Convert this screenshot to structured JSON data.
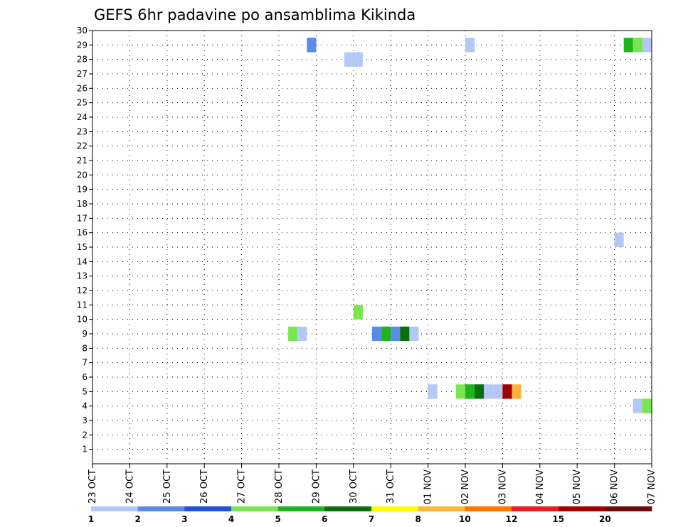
{
  "chart_data": {
    "type": "heatmap",
    "title": "GEFS 6hr padavine po ansamblima Kikinda",
    "xlabel": "",
    "ylabel": "",
    "x_tick_labels": [
      "23 OCT",
      "24 OCT",
      "25 OCT",
      "26 OCT",
      "27 OCT",
      "28 OCT",
      "29 OCT",
      "30 OCT",
      "31 OCT",
      "01 NOV",
      "02 NOV",
      "03 NOV",
      "04 NOV",
      "05 NOV",
      "06 NOV",
      "07 NOV"
    ],
    "x_range_days": [
      0,
      15
    ],
    "y_range": [
      0,
      30
    ],
    "y_ticks": [
      1,
      2,
      3,
      4,
      5,
      6,
      7,
      8,
      9,
      10,
      11,
      12,
      13,
      14,
      15,
      16,
      17,
      18,
      19,
      20,
      21,
      22,
      23,
      24,
      25,
      26,
      27,
      28,
      29,
      30
    ],
    "grid": true,
    "time_step_hours": 6,
    "legend": {
      "placement": "bottom",
      "colors": [
        "#b4c8f5",
        "#5a8ce6",
        "#1e50dc",
        "#78e650",
        "#1eb41e",
        "#0a6e0a",
        "#ffff00",
        "#ffb43c",
        "#ff7800",
        "#e61e1e",
        "#a00000",
        "#6e0a0a"
      ],
      "labels": [
        "1",
        "2",
        "3",
        "4",
        "5",
        "6",
        "7",
        "8",
        "10",
        "12",
        "15",
        "20"
      ]
    },
    "cells": [
      {
        "member": 29,
        "day": 5.875,
        "value": 2
      },
      {
        "member": 28,
        "day": 6.875,
        "value": 1
      },
      {
        "member": 28,
        "day": 7.125,
        "value": 1
      },
      {
        "member": 29,
        "day": 10.125,
        "value": 1
      },
      {
        "member": 29,
        "day": 14.375,
        "value": 5
      },
      {
        "member": 29,
        "day": 14.625,
        "value": 4
      },
      {
        "member": 29,
        "day": 14.875,
        "value": 1
      },
      {
        "member": 15.5,
        "day": 14.125,
        "value": 1
      },
      {
        "member": 10.5,
        "day": 7.125,
        "value": 4
      },
      {
        "member": 9,
        "day": 5.375,
        "value": 4
      },
      {
        "member": 9,
        "day": 5.625,
        "value": 1
      },
      {
        "member": 9,
        "day": 7.625,
        "value": 2
      },
      {
        "member": 9,
        "day": 7.875,
        "value": 5
      },
      {
        "member": 9,
        "day": 8.125,
        "value": 2
      },
      {
        "member": 9,
        "day": 8.375,
        "value": 6
      },
      {
        "member": 9,
        "day": 8.625,
        "value": 1
      },
      {
        "member": 5,
        "day": 9.125,
        "value": 1
      },
      {
        "member": 5,
        "day": 9.875,
        "value": 4
      },
      {
        "member": 5,
        "day": 10.125,
        "value": 5
      },
      {
        "member": 5,
        "day": 10.375,
        "value": 6
      },
      {
        "member": 5,
        "day": 10.625,
        "value": 1
      },
      {
        "member": 5,
        "day": 10.875,
        "value": 1
      },
      {
        "member": 5,
        "day": 11.125,
        "value": 15
      },
      {
        "member": 5,
        "day": 11.375,
        "value": 8
      },
      {
        "member": 4,
        "day": 14.625,
        "value": 1
      },
      {
        "member": 4,
        "day": 14.875,
        "value": 4
      }
    ]
  }
}
